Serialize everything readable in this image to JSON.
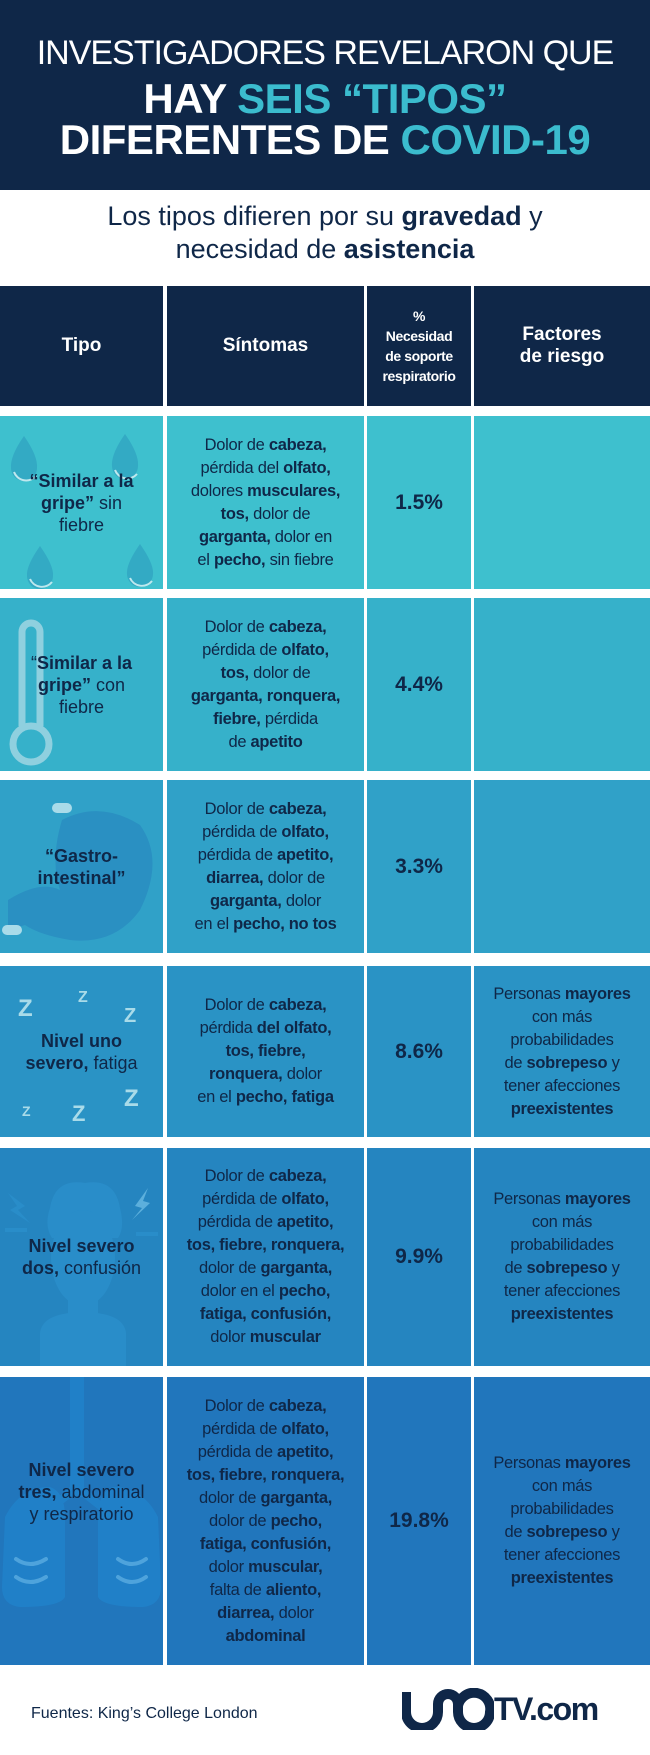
{
  "header": {
    "line1": "INVESTIGADORES REVELARON QUE",
    "line2_plain": "HAY ",
    "line2_accent": "SEIS “TIPOS”",
    "line3_plain": "DIFERENTES DE ",
    "line3_accent": "COVID-19"
  },
  "subtitle": {
    "part1": "Los tipos difieren por su ",
    "bold1": "gravedad",
    "part2": " y",
    "part3": "necesidad de ",
    "bold2": "asistencia"
  },
  "table": {
    "columns": {
      "tipo": "Tipo",
      "sintomas": "Síntomas",
      "pct_symbol": "%",
      "pct_label_1": "Necesidad",
      "pct_label_2": "de soporte",
      "pct_label_3": "respiratorio",
      "factores_1": "Factores",
      "factores_2": "de riesgo"
    },
    "rows": [
      {
        "color": "#3ec0ce",
        "icon": "water-drop-icon",
        "tipo": [
          [
            "“Similar a la",
            "b"
          ],
          [
            "\n",
            ""
          ],
          [
            "gripe”",
            "b"
          ],
          [
            " sin",
            ""
          ],
          [
            "\n",
            ""
          ],
          [
            "fiebre",
            ""
          ]
        ],
        "sintomas": [
          [
            "Dolor de ",
            ""
          ],
          [
            "cabeza,",
            "b"
          ],
          [
            "\n",
            ""
          ],
          [
            "pérdida del ",
            ""
          ],
          [
            "olfato,",
            "b"
          ],
          [
            "\n",
            ""
          ],
          [
            "dolores ",
            ""
          ],
          [
            "musculares,",
            "b"
          ],
          [
            "\n",
            ""
          ],
          [
            "tos,",
            "b"
          ],
          [
            " dolor de",
            ""
          ],
          [
            "\n",
            ""
          ],
          [
            "garganta,",
            "b"
          ],
          [
            " dolor en",
            ""
          ],
          [
            "\n",
            ""
          ],
          [
            "el ",
            ""
          ],
          [
            "pecho,",
            "b"
          ],
          [
            " sin fiebre",
            ""
          ]
        ],
        "pct": "1.5%",
        "factores": []
      },
      {
        "color": "#36b1ca",
        "icon": "thermometer-icon",
        "tipo": [
          [
            "“",
            ""
          ],
          [
            "Similar a la",
            "b"
          ],
          [
            "\n",
            ""
          ],
          [
            "gripe”",
            "b"
          ],
          [
            " con",
            ""
          ],
          [
            "\n",
            ""
          ],
          [
            "fiebre",
            ""
          ]
        ],
        "sintomas": [
          [
            "Dolor de ",
            ""
          ],
          [
            "cabeza,",
            "b"
          ],
          [
            "\n",
            ""
          ],
          [
            "pérdida de ",
            ""
          ],
          [
            "olfato,",
            "b"
          ],
          [
            "\n",
            ""
          ],
          [
            "tos,",
            "b"
          ],
          [
            " dolor de",
            ""
          ],
          [
            "\n",
            ""
          ],
          [
            "garganta, ronquera,",
            "b"
          ],
          [
            "\n",
            ""
          ],
          [
            "fiebre,",
            "b"
          ],
          [
            " pérdida",
            ""
          ],
          [
            "\n",
            ""
          ],
          [
            "de ",
            ""
          ],
          [
            "apetito",
            "b"
          ]
        ],
        "pct": "4.4%",
        "factores": []
      },
      {
        "color": "#30a1c8",
        "icon": "stomach-icon",
        "tipo": [
          [
            "“Gastro-",
            "b"
          ],
          [
            "\n",
            ""
          ],
          [
            "intestinal”",
            "b"
          ]
        ],
        "sintomas": [
          [
            "Dolor de ",
            ""
          ],
          [
            "cabeza,",
            "b"
          ],
          [
            "\n",
            ""
          ],
          [
            "pérdida de ",
            ""
          ],
          [
            "olfato,",
            "b"
          ],
          [
            "\n",
            ""
          ],
          [
            "pérdida de ",
            ""
          ],
          [
            "apetito,",
            "b"
          ],
          [
            "\n",
            ""
          ],
          [
            "diarrea,",
            "b"
          ],
          [
            " dolor de",
            ""
          ],
          [
            "\n",
            ""
          ],
          [
            "garganta,",
            "b"
          ],
          [
            " dolor",
            ""
          ],
          [
            "\n",
            ""
          ],
          [
            "en el ",
            ""
          ],
          [
            "pecho, no tos",
            "b"
          ]
        ],
        "pct": "3.3%",
        "factores": []
      },
      {
        "color": "#2a93c5",
        "icon": "sleep-z-icon",
        "tipo": [
          [
            "Nivel uno",
            "b"
          ],
          [
            "\n",
            ""
          ],
          [
            "severo,",
            "b"
          ],
          [
            " fatiga",
            ""
          ]
        ],
        "sintomas": [
          [
            "Dolor de ",
            ""
          ],
          [
            "cabeza,",
            "b"
          ],
          [
            "\n",
            ""
          ],
          [
            "pérdida ",
            ""
          ],
          [
            "del olfato,",
            "b"
          ],
          [
            "\n",
            ""
          ],
          [
            "tos, fiebre,",
            "b"
          ],
          [
            "\n",
            ""
          ],
          [
            "ronquera,",
            "b"
          ],
          [
            " dolor",
            ""
          ],
          [
            "\n",
            ""
          ],
          [
            "en el ",
            ""
          ],
          [
            "pecho, fatiga",
            "b"
          ]
        ],
        "pct": "8.6%",
        "factores": [
          [
            "Personas ",
            ""
          ],
          [
            "mayores",
            "b"
          ],
          [
            "\n",
            ""
          ],
          [
            "con más",
            ""
          ],
          [
            "\n",
            ""
          ],
          [
            "probabilidades",
            ""
          ],
          [
            "\n",
            ""
          ],
          [
            "de ",
            ""
          ],
          [
            "sobrepeso",
            "b"
          ],
          [
            " y",
            ""
          ],
          [
            "\n",
            ""
          ],
          [
            "tener afecciones",
            ""
          ],
          [
            "\n",
            ""
          ],
          [
            "preexistentes",
            "b"
          ]
        ]
      },
      {
        "color": "#2585c0",
        "icon": "confused-person-icon",
        "tipo": [
          [
            "Nivel severo",
            "b"
          ],
          [
            "\n",
            ""
          ],
          [
            "dos,",
            "b"
          ],
          [
            " confusión",
            ""
          ]
        ],
        "sintomas": [
          [
            "Dolor de ",
            ""
          ],
          [
            "cabeza,",
            "b"
          ],
          [
            "\n",
            ""
          ],
          [
            "pérdida de ",
            ""
          ],
          [
            "olfato,",
            "b"
          ],
          [
            "\n",
            ""
          ],
          [
            "pérdida de ",
            ""
          ],
          [
            "apetito,",
            "b"
          ],
          [
            "\n",
            ""
          ],
          [
            "tos, fiebre, ronquera,",
            "b"
          ],
          [
            "\n",
            ""
          ],
          [
            "dolor de ",
            ""
          ],
          [
            "garganta,",
            "b"
          ],
          [
            "\n",
            ""
          ],
          [
            "dolor en el ",
            ""
          ],
          [
            "pecho,",
            "b"
          ],
          [
            "\n",
            ""
          ],
          [
            "fatiga, confusión,",
            "b"
          ],
          [
            "\n",
            ""
          ],
          [
            "dolor ",
            ""
          ],
          [
            "muscular",
            "b"
          ]
        ],
        "pct": "9.9%",
        "factores": [
          [
            "Personas ",
            ""
          ],
          [
            "mayores",
            "b"
          ],
          [
            "\n",
            ""
          ],
          [
            "con más",
            ""
          ],
          [
            "\n",
            ""
          ],
          [
            "probabilidades",
            ""
          ],
          [
            "\n",
            ""
          ],
          [
            "de ",
            ""
          ],
          [
            "sobrepeso",
            "b"
          ],
          [
            " y",
            ""
          ],
          [
            "\n",
            ""
          ],
          [
            "tener afecciones",
            ""
          ],
          [
            "\n",
            ""
          ],
          [
            "preexistentes",
            "b"
          ]
        ]
      },
      {
        "color": "#2176bc",
        "icon": "lungs-icon",
        "tipo": [
          [
            "Nivel severo",
            "b"
          ],
          [
            "\n",
            ""
          ],
          [
            "tres,",
            "b"
          ],
          [
            " abdominal",
            ""
          ],
          [
            "\n",
            ""
          ],
          [
            "y respiratorio",
            ""
          ]
        ],
        "sintomas": [
          [
            "Dolor de ",
            ""
          ],
          [
            "cabeza,",
            "b"
          ],
          [
            "\n",
            ""
          ],
          [
            "pérdida de ",
            ""
          ],
          [
            "olfato,",
            "b"
          ],
          [
            "\n",
            ""
          ],
          [
            "pérdida de ",
            ""
          ],
          [
            "apetito,",
            "b"
          ],
          [
            "\n",
            ""
          ],
          [
            "tos, fiebre, ronquera,",
            "b"
          ],
          [
            "\n",
            ""
          ],
          [
            "dolor de ",
            ""
          ],
          [
            "garganta,",
            "b"
          ],
          [
            "\n",
            ""
          ],
          [
            "dolor de ",
            ""
          ],
          [
            "pecho,",
            "b"
          ],
          [
            "\n",
            ""
          ],
          [
            "fatiga, confusión,",
            "b"
          ],
          [
            "\n",
            ""
          ],
          [
            "dolor ",
            ""
          ],
          [
            "muscular,",
            "b"
          ],
          [
            "\n",
            ""
          ],
          [
            "falta de ",
            ""
          ],
          [
            "aliento,",
            "b"
          ],
          [
            "\n",
            ""
          ],
          [
            "diarrea,",
            "b"
          ],
          [
            " dolor",
            ""
          ],
          [
            "\n",
            ""
          ],
          [
            "abdominal",
            "b"
          ]
        ],
        "pct": "19.8%",
        "factores": [
          [
            "Personas ",
            ""
          ],
          [
            "mayores",
            "b"
          ],
          [
            "\n",
            ""
          ],
          [
            "con más",
            ""
          ],
          [
            "\n",
            ""
          ],
          [
            "probabilidades",
            ""
          ],
          [
            "\n",
            ""
          ],
          [
            "de ",
            ""
          ],
          [
            "sobrepeso",
            "b"
          ],
          [
            " y",
            ""
          ],
          [
            "\n",
            ""
          ],
          [
            "tener afecciones",
            ""
          ],
          [
            "\n",
            ""
          ],
          [
            "preexistentes",
            "b"
          ]
        ]
      }
    ]
  },
  "footer": {
    "source": "Fuentes: King’s College London",
    "logo_text": "TV.com"
  },
  "colors": {
    "navy": "#0f2748",
    "accent": "#3bbcce"
  }
}
